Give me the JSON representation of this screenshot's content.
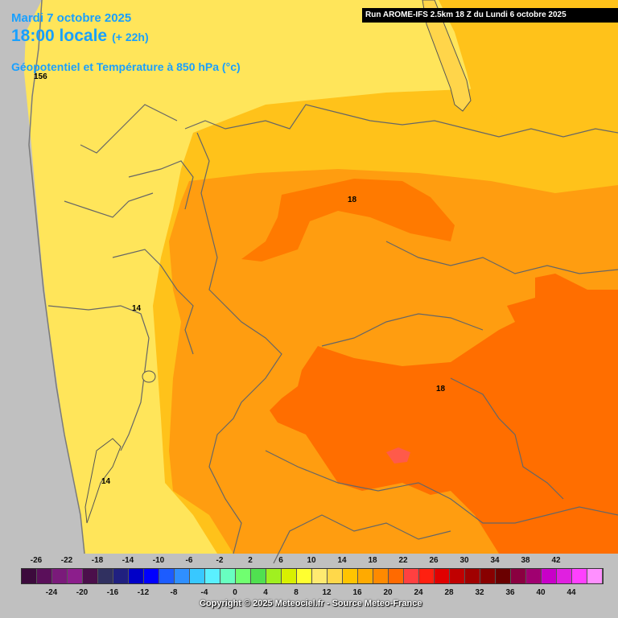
{
  "header": {
    "date": "Mardi 7 octobre 2025",
    "time": "18:00 locale",
    "lead": "(+ 22h)",
    "field": "Géopotentiel et Température à 850 hPa (°c)",
    "run": "Run AROME-IFS 2.5km 18 Z du Lundi 6 octobre 2025"
  },
  "map_labels": {
    "geopotential": "156",
    "iso_18_north": "18",
    "iso_14": "14",
    "iso_18_south": "18",
    "iso_14_south": "14"
  },
  "legend": {
    "top_labels": [
      "-26",
      "-22",
      "-18",
      "-14",
      "-10",
      "-6",
      "-2",
      "2",
      "6",
      "10",
      "14",
      "18",
      "22",
      "26",
      "30",
      "34",
      "38",
      "42"
    ],
    "bottom_labels": [
      "-24",
      "-20",
      "-16",
      "-12",
      "-8",
      "-4",
      "0",
      "4",
      "8",
      "12",
      "16",
      "20",
      "24",
      "28",
      "32",
      "36",
      "40",
      "44"
    ],
    "colors": [
      "#3c0a3c",
      "#5a0f5a",
      "#7a1a7a",
      "#8c1e8c",
      "#4b0f4b",
      "#303060",
      "#202080",
      "#0000c8",
      "#0000ff",
      "#1c5cff",
      "#2f8fff",
      "#38c8ff",
      "#5af0ff",
      "#68ffc0",
      "#70ff70",
      "#50e050",
      "#a0f020",
      "#d8f000",
      "#ffff30",
      "#ffea70",
      "#ffd84a",
      "#ffc400",
      "#ffaa00",
      "#ff8a00",
      "#ff6a00",
      "#ff4040",
      "#ff2010",
      "#e00000",
      "#c00000",
      "#a00000",
      "#880000",
      "#6a0000",
      "#8a0040",
      "#a00070",
      "#c800c8",
      "#e020e0",
      "#ff40ff",
      "#ff90ff"
    ]
  },
  "copyright": "Copyright © 2025 Meteociel.fr - Source Meteo-France"
}
